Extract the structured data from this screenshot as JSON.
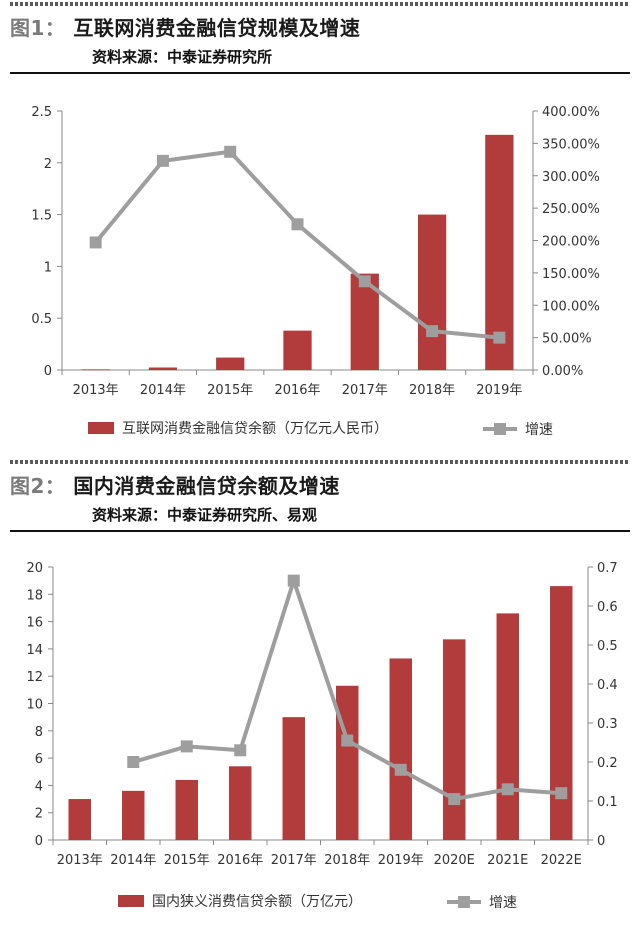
{
  "figures": [
    {
      "num": "图1：",
      "title": "互联网消费金融信贷规模及增速",
      "source": "资料来源：中泰证券研究所",
      "legend_bar": "互联网消费金融信贷余额（万亿元人民币）",
      "legend_line": "增速"
    },
    {
      "num": "图2：",
      "title": "国内消费金融信贷余额及增速",
      "source": "资料来源：中泰证券研究所、易观",
      "legend_bar": "国内狭义消费信贷余额（万亿元）",
      "legend_line": "增速"
    }
  ],
  "colors": {
    "bar": "#b23b3b",
    "line": "#9e9e9e",
    "axis": "#888888"
  },
  "chart_data": [
    {
      "type": "bar",
      "categories": [
        "2013年",
        "2014年",
        "2015年",
        "2016年",
        "2017年",
        "2018年",
        "2019年"
      ],
      "series": [
        {
          "name": "互联网消费金融信贷余额（万亿元人民币）",
          "type": "bar",
          "axis": "left",
          "values": [
            0.006,
            0.024,
            0.12,
            0.38,
            0.93,
            1.5,
            2.27
          ]
        },
        {
          "name": "增速",
          "type": "line",
          "axis": "right",
          "values": [
            1.97,
            3.23,
            3.37,
            2.25,
            1.37,
            0.6,
            0.5
          ]
        }
      ],
      "ylim_left": [
        0,
        2.5
      ],
      "yticks_left": [
        "0",
        "0.5",
        "1",
        "1.5",
        "2",
        "2.5"
      ],
      "ylim_right": [
        0,
        4
      ],
      "yticks_right": [
        "0.00%",
        "50.00%",
        "100.00%",
        "150.00%",
        "200.00%",
        "250.00%",
        "300.00%",
        "350.00%",
        "400.00%"
      ],
      "legend_position": "bottom"
    },
    {
      "type": "bar",
      "categories": [
        "2013年",
        "2014年",
        "2015年",
        "2016年",
        "2017年",
        "2018年",
        "2019年",
        "2020E",
        "2021E",
        "2022E"
      ],
      "series": [
        {
          "name": "国内狭义消费信贷余额（万亿元）",
          "type": "bar",
          "axis": "left",
          "values": [
            3.0,
            3.6,
            4.4,
            5.4,
            9.0,
            11.3,
            13.3,
            14.7,
            16.6,
            18.6
          ]
        },
        {
          "name": "增速",
          "type": "line",
          "axis": "right",
          "values": [
            null,
            0.2,
            0.24,
            0.23,
            0.665,
            0.255,
            0.18,
            0.105,
            0.13,
            0.12
          ]
        }
      ],
      "ylim_left": [
        0,
        20
      ],
      "yticks_left": [
        "0",
        "2",
        "4",
        "6",
        "8",
        "10",
        "12",
        "14",
        "16",
        "18",
        "20"
      ],
      "ylim_right": [
        0,
        0.7
      ],
      "yticks_right": [
        "0",
        "0.1",
        "0.2",
        "0.3",
        "0.4",
        "0.5",
        "0.6",
        "0.7"
      ],
      "legend_position": "bottom"
    }
  ]
}
